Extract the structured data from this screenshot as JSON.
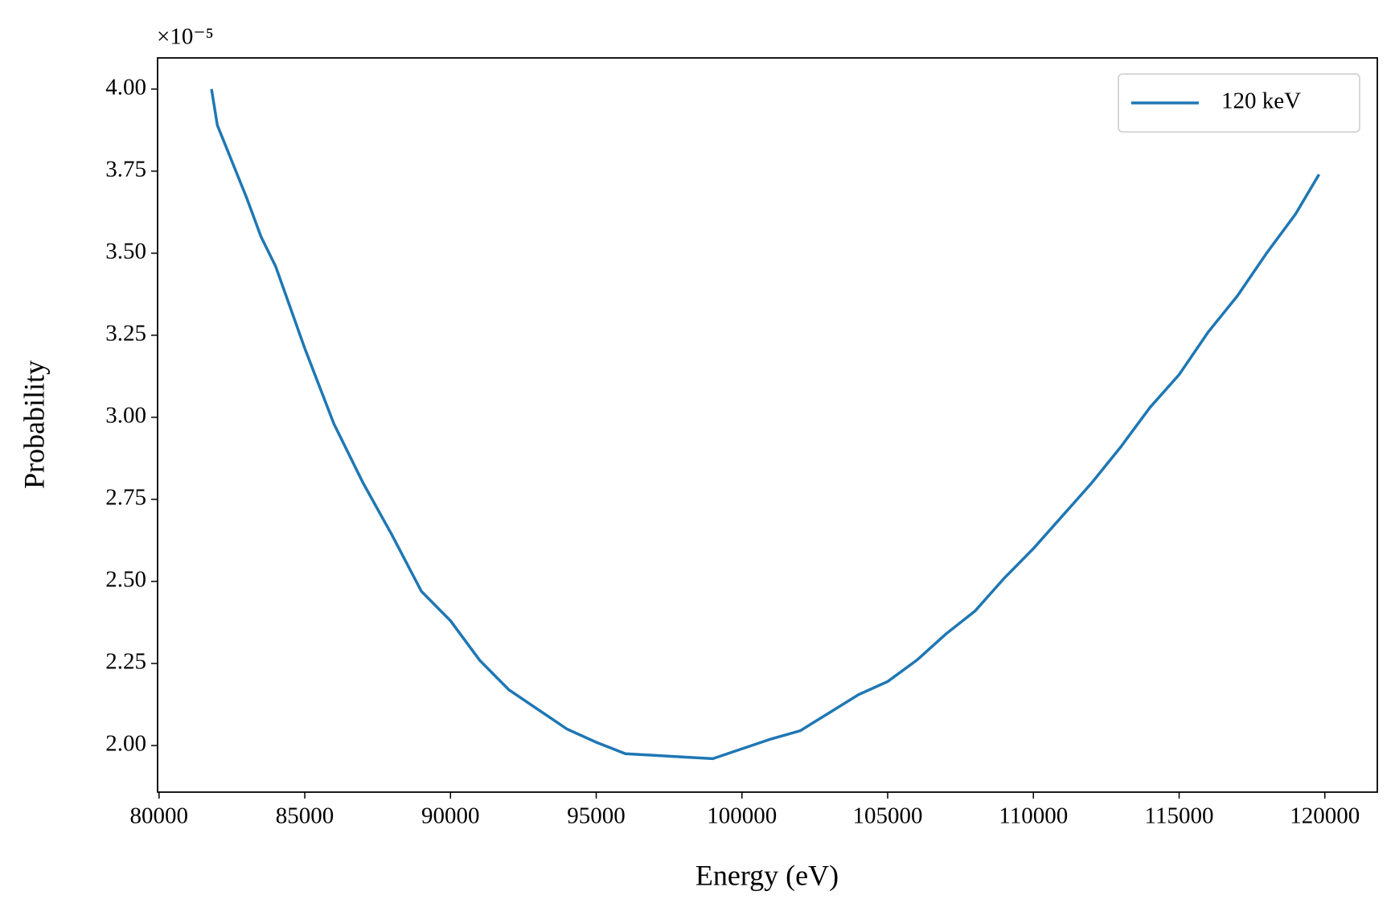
{
  "chart_data": {
    "type": "line",
    "xlabel": "Energy (eV)",
    "ylabel": "Probability",
    "y_offset_label": "×10⁻⁵",
    "x": [
      81800,
      82000,
      83000,
      83500,
      84000,
      85000,
      86000,
      87000,
      88000,
      89000,
      90000,
      91000,
      92000,
      93000,
      94000,
      95000,
      96000,
      97000,
      98000,
      99000,
      100000,
      101000,
      102000,
      103000,
      104000,
      105000,
      106000,
      107000,
      108000,
      109000,
      110000,
      111000,
      112000,
      113000,
      114000,
      115000,
      116000,
      117000,
      118000,
      119000,
      119800
    ],
    "series": [
      {
        "name": "120 keV",
        "color": "#1f77b4",
        "values": [
          4.0,
          3.89,
          3.67,
          3.55,
          3.46,
          3.21,
          2.98,
          2.8,
          2.64,
          2.47,
          2.38,
          2.26,
          2.17,
          2.11,
          2.05,
          2.01,
          1.975,
          1.97,
          1.965,
          1.96,
          1.99,
          2.02,
          2.045,
          2.1,
          2.155,
          2.195,
          2.26,
          2.34,
          2.41,
          2.51,
          2.6,
          2.7,
          2.8,
          2.91,
          3.03,
          3.13,
          3.26,
          3.37,
          3.5,
          3.62,
          3.74
        ]
      }
    ],
    "xlim": [
      79950,
      121800
    ],
    "ylim": [
      1.858,
      4.095
    ],
    "xticks": [
      80000,
      85000,
      90000,
      95000,
      100000,
      105000,
      110000,
      115000,
      120000
    ],
    "yticks": [
      {
        "value": 2,
        "label": "2.00"
      },
      {
        "value": 2.25,
        "label": "2.25"
      },
      {
        "value": 2.5,
        "label": "2.50"
      },
      {
        "value": 2.75,
        "label": "2.75"
      },
      {
        "value": 3,
        "label": "3.00"
      },
      {
        "value": 3.25,
        "label": "3.25"
      },
      {
        "value": 3.5,
        "label": "3.50"
      },
      {
        "value": 3.75,
        "label": "3.75"
      },
      {
        "value": 4,
        "label": "4.00"
      }
    ],
    "legend": "upper right",
    "grid": false
  }
}
